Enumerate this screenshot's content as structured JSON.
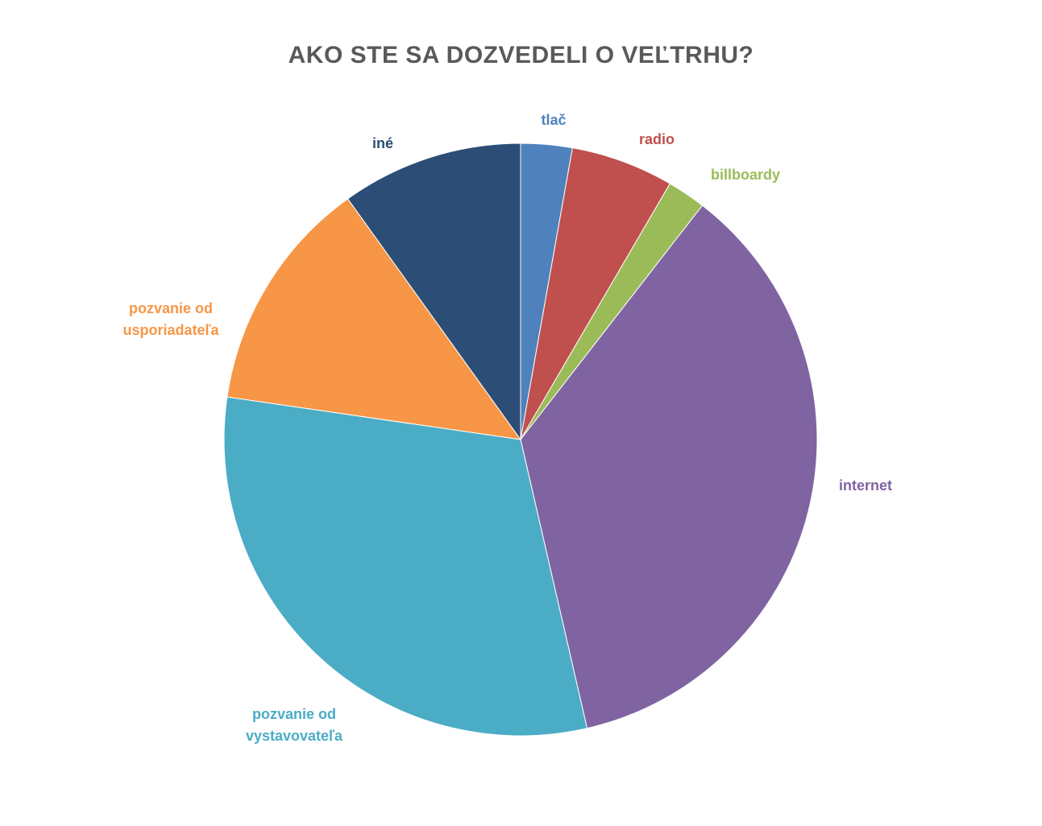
{
  "chart_data": {
    "type": "pie",
    "title": "AKO STE SA DOZVEDELI O VEĽTRHU?",
    "start_angle_deg": 0,
    "direction": "clockwise",
    "legend": "none",
    "slices": [
      {
        "label": "tlač",
        "value": 2.8,
        "color": "#4F81BD"
      },
      {
        "label": "radio",
        "value": 5.6,
        "color": "#C0504D"
      },
      {
        "label": "billboardy",
        "value": 2.1,
        "color": "#9BBB59"
      },
      {
        "label": "internet",
        "value": 35.9,
        "color": "#8064A2"
      },
      {
        "label": "pozvanie od vystavovateľa",
        "value": 30.9,
        "color": "#4BACC6"
      },
      {
        "label": "pozvanie od usporiadateľa",
        "value": 12.8,
        "color": "#F79646"
      },
      {
        "label": "iné",
        "value": 9.9,
        "color": "#2C4D75"
      }
    ]
  }
}
